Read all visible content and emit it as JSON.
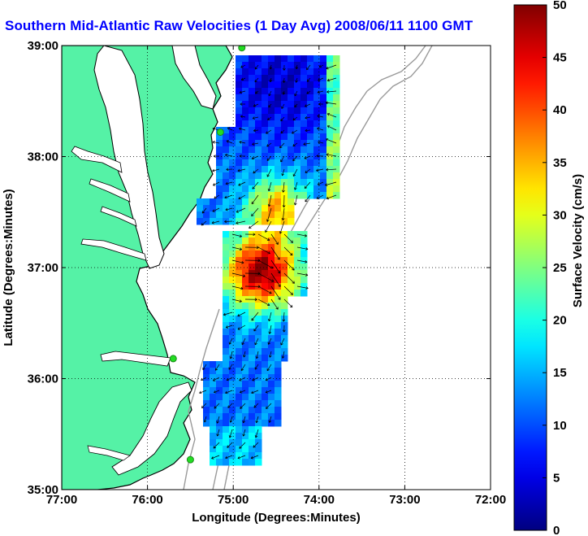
{
  "chart_data": {
    "type": "heatmap",
    "title": "Southern Mid-Atlantic Raw Velocities (1 Day Avg) 2008/06/11 1100 GMT",
    "xlabel": "Longitude (Degrees:Minutes)",
    "ylabel": "Latitude (Degrees:Minutes)",
    "xlim": [
      -77,
      -72
    ],
    "ylim": [
      35,
      39
    ],
    "x_ticks": [
      {
        "value": -77,
        "label": "77:00"
      },
      {
        "value": -76,
        "label": "76:00"
      },
      {
        "value": -75,
        "label": "75:00"
      },
      {
        "value": -74,
        "label": "74:00"
      },
      {
        "value": -73,
        "label": "73:00"
      },
      {
        "value": -72,
        "label": "72:00"
      }
    ],
    "y_ticks": [
      {
        "value": 35,
        "label": "35:00"
      },
      {
        "value": 36,
        "label": "36:00"
      },
      {
        "value": 37,
        "label": "37:00"
      },
      {
        "value": 38,
        "label": "38:00"
      },
      {
        "value": 39,
        "label": "39:00"
      }
    ],
    "grid": "dotted",
    "colorbar": {
      "label": "Surface Velocity (cm/s)",
      "min": 0,
      "max": 50,
      "ticks": [
        0,
        5,
        10,
        15,
        20,
        25,
        30,
        35,
        40,
        45,
        50
      ],
      "colormap": "jet"
    },
    "colors": {
      "land": "#55f2a6",
      "coast": "#000000",
      "title": "#0000ff",
      "station": "#22dd22",
      "bathymetry": "#9a9a9a"
    },
    "stations": [
      {
        "lon": -74.9,
        "lat": 38.98
      },
      {
        "lon": -75.15,
        "lat": 38.22
      },
      {
        "lon": -75.7,
        "lat": 36.18
      },
      {
        "lon": -75.5,
        "lat": 35.27
      }
    ]
  }
}
